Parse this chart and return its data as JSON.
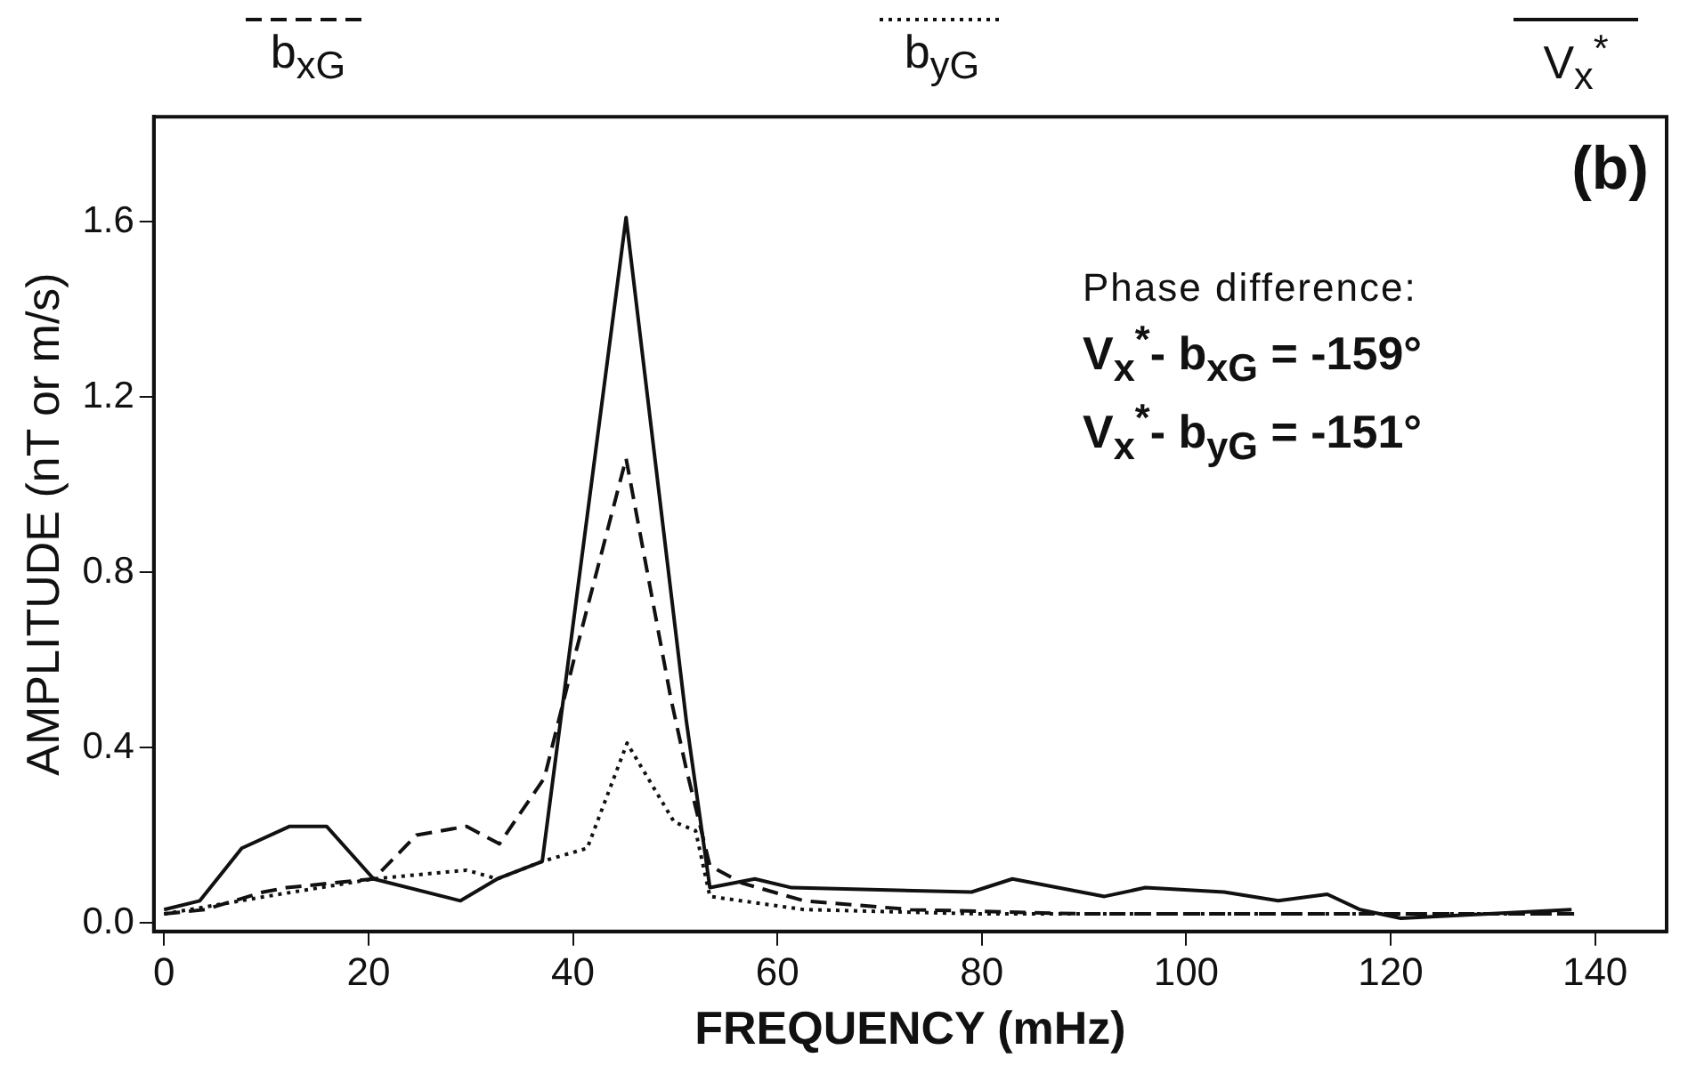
{
  "chart_data": {
    "type": "line",
    "xlabel": "FREQUENCY (mHz)",
    "ylabel": "AMPLITUDE (nT or m/s)",
    "xlim": [
      -1,
      147
    ],
    "ylim": [
      -0.02,
      1.84
    ],
    "xticks": [
      0,
      20,
      40,
      60,
      80,
      100,
      120,
      140
    ],
    "yticks": [
      {
        "value": 0,
        "label": "0.0"
      },
      {
        "value": 0.4,
        "label": "0.4"
      },
      {
        "value": 0.8,
        "label": "0.8"
      },
      {
        "value": 1.2,
        "label": "1.2"
      },
      {
        "value": 1.6,
        "label": "1.6"
      }
    ],
    "legend": "top",
    "grid": false,
    "marker": "none",
    "annotations": [
      "(b)",
      "Phase difference:",
      "V$_{x}$$^{*}$- b$_{xG}$ = -159°",
      "V$_{x}$$^{*}$- b$_{yG}$ = -151°"
    ],
    "series": [
      {
        "name": "b$_{xG}$",
        "color": "#111111",
        "line_style": "dashed",
        "x": [
          0,
          4,
          9.7,
          12,
          20.5,
          24.7,
          29.6,
          32.8,
          37.2,
          40.2,
          45.2,
          49.6,
          51.1,
          53.4,
          56.6,
          62.6,
          73,
          90,
          110,
          138
        ],
        "values": [
          0.02,
          0.03,
          0.07,
          0.08,
          0.1,
          0.2,
          0.22,
          0.18,
          0.33,
          0.61,
          1.06,
          0.51,
          0.35,
          0.13,
          0.09,
          0.05,
          0.03,
          0.02,
          0.02,
          0.02
        ]
      },
      {
        "name": "b$_{yG}$",
        "color": "#111111",
        "line_style": "dotted",
        "x": [
          0,
          10,
          20.5,
          29.6,
          32.6,
          37,
          41.4,
          45.3,
          49.9,
          52,
          53.4,
          62.6,
          80,
          100,
          120,
          138
        ],
        "values": [
          0.02,
          0.06,
          0.1,
          0.12,
          0.1,
          0.14,
          0.17,
          0.41,
          0.23,
          0.21,
          0.06,
          0.03,
          0.02,
          0.02,
          0.02,
          0.02
        ]
      },
      {
        "name": "V$_{x}$$^{*}$",
        "color": "#111111",
        "line_style": "solid",
        "x": [
          0,
          3.5,
          7.6,
          12.3,
          15.9,
          20.5,
          29,
          32.6,
          37,
          45.2,
          51.1,
          53.4,
          57.8,
          61.4,
          79,
          83,
          92,
          96,
          103.7,
          109,
          113.8,
          117,
          121,
          137.7
        ],
        "values": [
          0.03,
          0.05,
          0.17,
          0.22,
          0.22,
          0.1,
          0.05,
          0.1,
          0.14,
          1.61,
          0.46,
          0.08,
          0.1,
          0.08,
          0.07,
          0.1,
          0.06,
          0.08,
          0.07,
          0.05,
          0.065,
          0.03,
          0.01,
          0.03
        ]
      }
    ]
  }
}
